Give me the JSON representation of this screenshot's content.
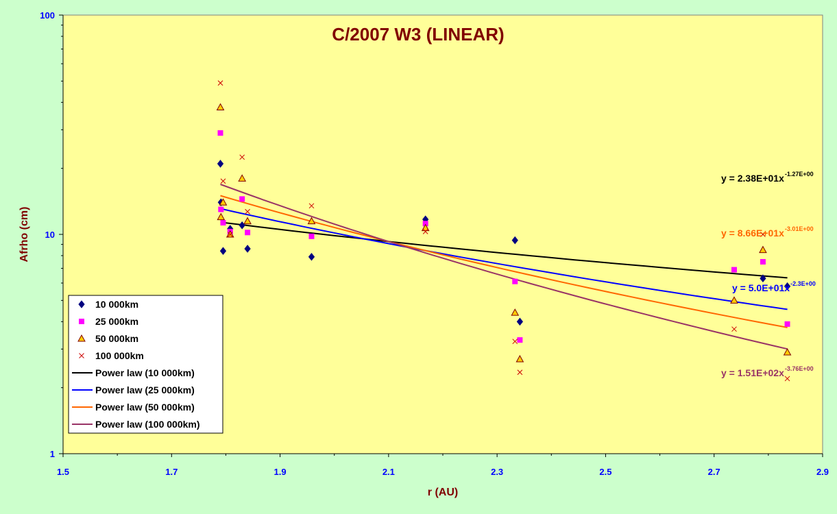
{
  "chart_data": {
    "type": "scatter",
    "title": "C/2007 W3 (LINEAR)",
    "xlabel": "r (AU)",
    "ylabel": "Afrho (cm)",
    "xlim": [
      1.5,
      2.9
    ],
    "ylim": [
      1,
      100
    ],
    "yscale": "log",
    "xticks": [
      "1.5",
      "1.7",
      "1.9",
      "2.1",
      "2.3",
      "2.5",
      "2.7",
      "2.9"
    ],
    "yticks": [
      "1",
      "10",
      "100"
    ],
    "legend_position": "bottom-left",
    "series": [
      {
        "name": "10 000km",
        "marker": "diamond",
        "color": "#000080",
        "points": [
          [
            1.79,
            21.0
          ],
          [
            1.791,
            14.0
          ],
          [
            1.795,
            8.4
          ],
          [
            1.808,
            10.6
          ],
          [
            1.83,
            11.0
          ],
          [
            1.84,
            8.6
          ],
          [
            1.958,
            7.9
          ],
          [
            2.168,
            11.7
          ],
          [
            2.333,
            9.4
          ],
          [
            2.342,
            4.0
          ],
          [
            2.79,
            6.3
          ],
          [
            2.835,
            5.8
          ]
        ]
      },
      {
        "name": "25 000km",
        "marker": "square",
        "color": "#ff00ff",
        "points": [
          [
            1.79,
            29.0
          ],
          [
            1.791,
            13.0
          ],
          [
            1.795,
            11.3
          ],
          [
            1.808,
            10.3
          ],
          [
            1.83,
            14.5
          ],
          [
            1.84,
            10.2
          ],
          [
            1.958,
            9.8
          ],
          [
            2.168,
            11.2
          ],
          [
            2.333,
            6.1
          ],
          [
            2.342,
            3.3
          ],
          [
            2.737,
            6.9
          ],
          [
            2.79,
            7.5
          ],
          [
            2.835,
            3.9
          ]
        ]
      },
      {
        "name": "50 000km",
        "marker": "triangle",
        "color": "#ffcc00",
        "points": [
          [
            1.79,
            38.0
          ],
          [
            1.791,
            12.0
          ],
          [
            1.795,
            14.0
          ],
          [
            1.808,
            10.0
          ],
          [
            1.83,
            18.0
          ],
          [
            1.84,
            11.5
          ],
          [
            1.958,
            11.5
          ],
          [
            2.168,
            10.7
          ],
          [
            2.333,
            4.4
          ],
          [
            2.342,
            2.7
          ],
          [
            2.737,
            5.0
          ],
          [
            2.79,
            8.5
          ],
          [
            2.835,
            2.9
          ]
        ]
      },
      {
        "name": "100 000km",
        "marker": "x",
        "color": "#cc0000",
        "points": [
          [
            1.79,
            49.0
          ],
          [
            1.795,
            17.5
          ],
          [
            1.808,
            10.0
          ],
          [
            1.83,
            22.5
          ],
          [
            1.84,
            12.7
          ],
          [
            1.958,
            13.5
          ],
          [
            2.168,
            10.3
          ],
          [
            2.333,
            3.25
          ],
          [
            2.342,
            2.35
          ],
          [
            2.737,
            3.7
          ],
          [
            2.79,
            10.0
          ],
          [
            2.835,
            2.2
          ]
        ]
      }
    ],
    "fits": [
      {
        "name": "Power law (10 000km)",
        "color": "#000000",
        "coef": 23.8,
        "exp": -1.27,
        "label": "y = 2.38E+01x",
        "exp_label": "-1.27E+00",
        "label_color": "#000000"
      },
      {
        "name": "Power law (25 000km)",
        "color": "#0000ff",
        "coef": 50.0,
        "exp": -2.3,
        "label": "y = 5.0E+01x",
        "exp_label": "-2.3E+00",
        "label_color": "#0000ff"
      },
      {
        "name": "Power law (50 000km)",
        "color": "#ff6600",
        "coef": 86.6,
        "exp": -3.01,
        "label": "y = 8.66E+01x",
        "exp_label": "-3.01E+00",
        "label_color": "#ff6600"
      },
      {
        "name": "Power law (100 000km)",
        "color": "#993366",
        "coef": 151,
        "exp": -3.76,
        "label": "y = 1.51E+02x",
        "exp_label": "-3.76E+00",
        "label_color": "#993366"
      }
    ],
    "fit_xrange": [
      1.79,
      2.835
    ]
  }
}
